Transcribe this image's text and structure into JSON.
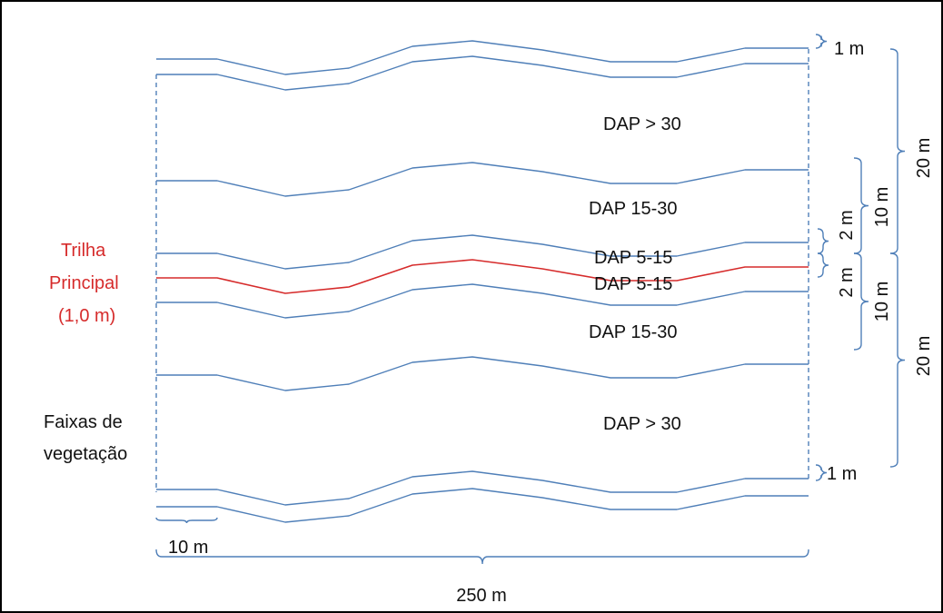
{
  "colors": {
    "line": "#4f7fb8",
    "trail": "#d62b2b",
    "text": "#111111",
    "border": "#000000"
  },
  "labels": {
    "band_top": "DAP > 30",
    "band_mid_up": "DAP 15-30",
    "band_inner_up": "DAP 5-15",
    "band_inner_down": "DAP 5-15",
    "band_mid_down": "DAP 15-30",
    "band_bottom": "DAP > 30",
    "trail_line1": "Trilha",
    "trail_line2": "Principal",
    "trail_line3": "(1,0 m)",
    "strips_line1": "Faixas de",
    "strips_line2": "vegetação"
  },
  "dimensions": {
    "top_margin": "1 m",
    "bottom_margin": "1 m",
    "outer_top": "20 m",
    "outer_bottom": "20 m",
    "mid_top": "10 m",
    "mid_bottom": "10 m",
    "inner_top": "2 m",
    "inner_bottom": "2 m",
    "segment": "10 m",
    "total_length": "250 m"
  }
}
